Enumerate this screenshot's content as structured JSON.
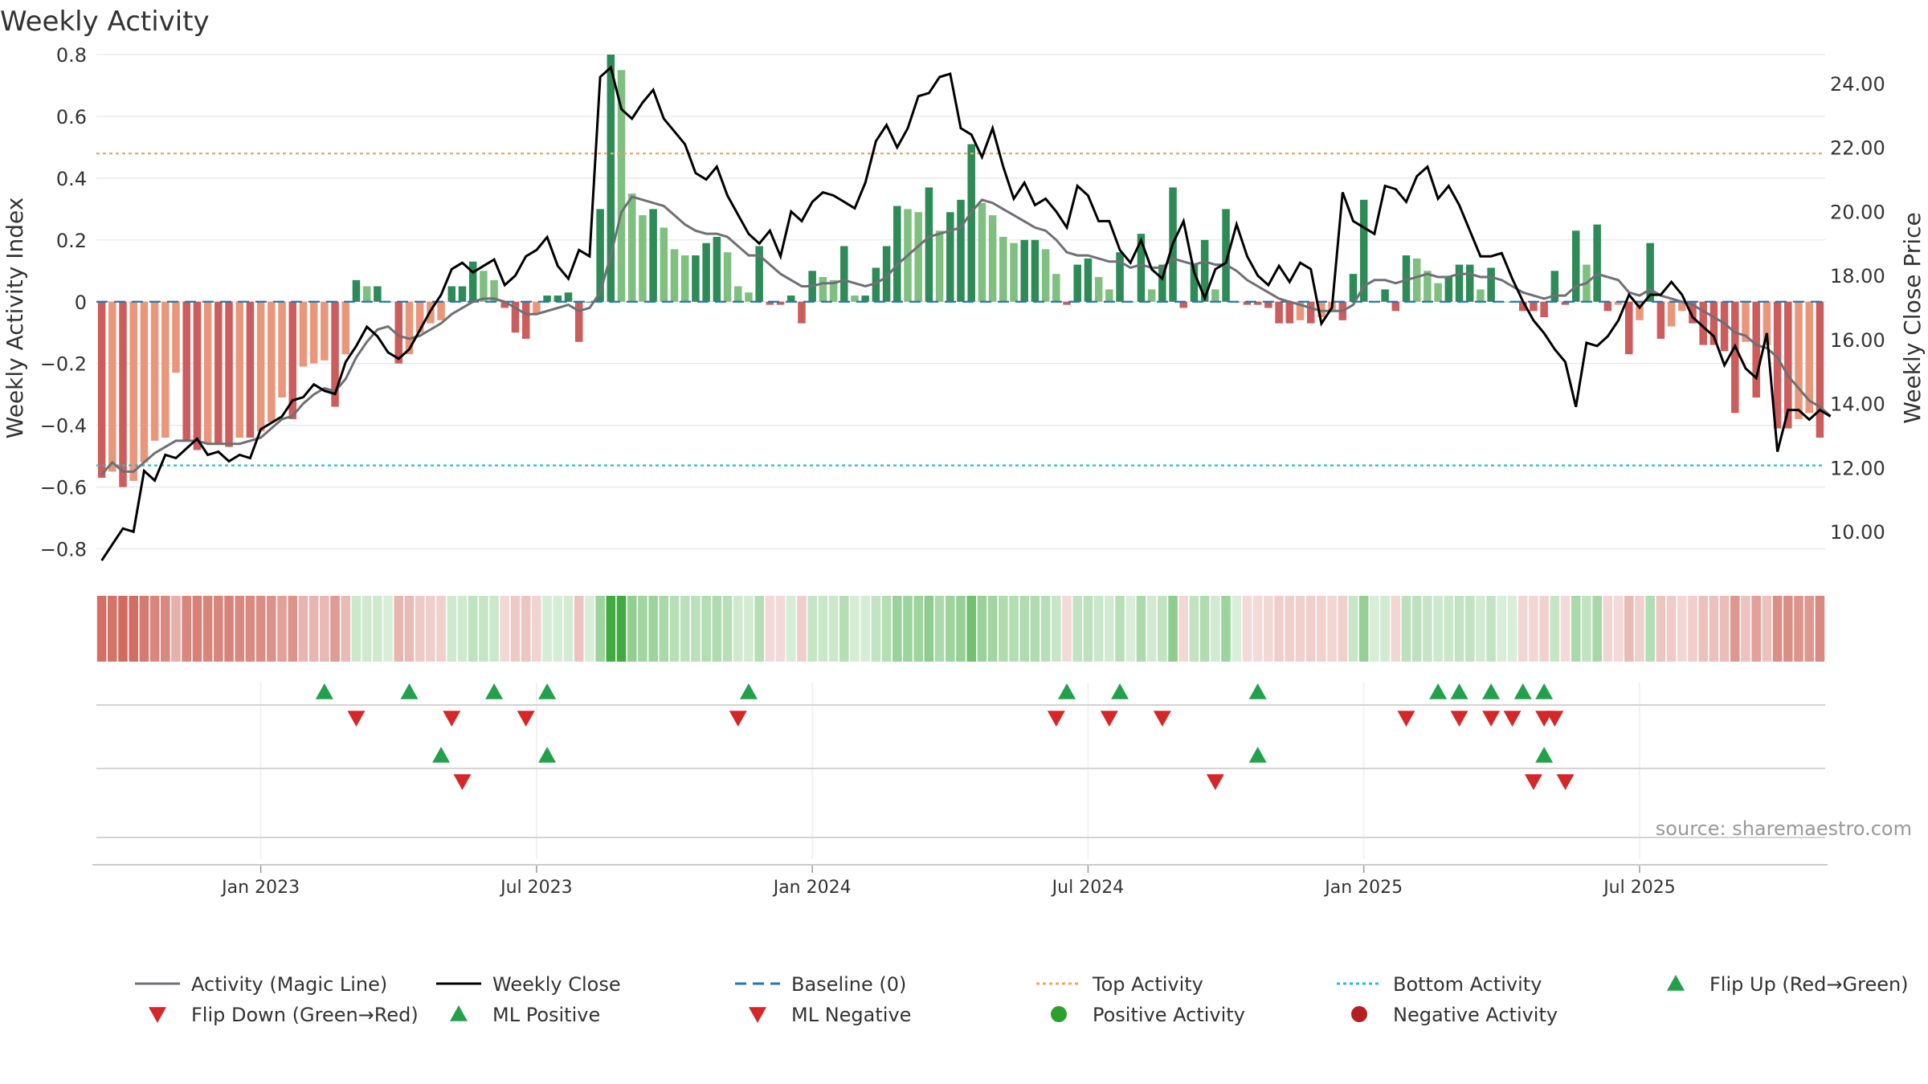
{
  "chart_data": {
    "type": "bar",
    "title": "Weekly Activity",
    "ylabel": "Weekly Activity Index",
    "y2label": "Weekly Close Price",
    "source": "source: sharemaestro.com",
    "ylim": [
      -0.9,
      0.8
    ],
    "y2lim": [
      8.5,
      24.9
    ],
    "yticks": [
      0.8,
      0.6,
      0.4,
      0.2,
      0,
      -0.2,
      -0.4,
      -0.6,
      -0.8
    ],
    "ytick_labels": [
      "0.8",
      "0.6",
      "0.4",
      "0.2",
      "0",
      "−0.2",
      "−0.4",
      "−0.6",
      "−0.8"
    ],
    "y2ticks": [
      24,
      22,
      20,
      18,
      16,
      14,
      12,
      10
    ],
    "y2tick_labels": [
      "24.00",
      "22.00",
      "20.00",
      "18.00",
      "16.00",
      "14.00",
      "12.00",
      "10.00"
    ],
    "x_ticks": [
      {
        "week": 15,
        "label": "Jan 2023"
      },
      {
        "week": 41,
        "label": "Jul 2023"
      },
      {
        "week": 67,
        "label": "Jan 2024"
      },
      {
        "week": 93,
        "label": "Jul 2024"
      },
      {
        "week": 119,
        "label": "Jan 2025"
      },
      {
        "week": 145,
        "label": "Jul 2025"
      }
    ],
    "reference_lines": {
      "baseline": 0,
      "top_activity": 0.48,
      "bottom_activity": -0.53
    },
    "activity_values": [
      -0.57,
      -0.55,
      -0.6,
      -0.58,
      -0.52,
      -0.45,
      -0.44,
      -0.23,
      -0.45,
      -0.48,
      -0.46,
      -0.46,
      -0.47,
      -0.44,
      -0.44,
      -0.42,
      -0.39,
      -0.31,
      -0.38,
      -0.21,
      -0.2,
      -0.19,
      -0.34,
      -0.17,
      0.07,
      0.05,
      0.05,
      0.0,
      -0.2,
      -0.17,
      -0.1,
      -0.07,
      -0.06,
      0.05,
      0.05,
      0.13,
      0.1,
      0.07,
      -0.02,
      -0.1,
      -0.12,
      -0.04,
      0.02,
      0.02,
      0.03,
      -0.13,
      0.0,
      0.3,
      0.8,
      0.75,
      0.35,
      0.28,
      0.3,
      0.24,
      0.17,
      0.15,
      0.15,
      0.19,
      0.21,
      0.16,
      0.05,
      0.03,
      0.18,
      -0.01,
      -0.01,
      0.02,
      -0.07,
      0.1,
      0.08,
      0.07,
      0.18,
      0.02,
      0.02,
      0.11,
      0.18,
      0.31,
      0.3,
      0.29,
      0.37,
      0.23,
      0.29,
      0.33,
      0.51,
      0.32,
      0.28,
      0.21,
      0.19,
      0.2,
      0.2,
      0.17,
      0.09,
      -0.01,
      0.12,
      0.14,
      0.08,
      0.04,
      0.16,
      0.0,
      0.22,
      0.04,
      0.12,
      0.37,
      -0.02,
      0.12,
      0.2,
      0.04,
      0.3,
      0.0,
      -0.01,
      -0.01,
      -0.02,
      -0.07,
      -0.07,
      -0.06,
      -0.07,
      -0.05,
      -0.03,
      -0.06,
      0.09,
      0.33,
      0.0,
      0.04,
      -0.03,
      0.15,
      0.14,
      0.1,
      0.06,
      0.08,
      0.12,
      0.12,
      0.04,
      0.11,
      0.0,
      0.0,
      -0.03,
      -0.03,
      -0.05,
      0.1,
      -0.01,
      0.23,
      0.12,
      0.25,
      -0.03,
      -0.01,
      -0.17,
      -0.06,
      0.19,
      -0.12,
      -0.08,
      -0.03,
      -0.07,
      -0.14,
      -0.14,
      -0.16,
      -0.36,
      -0.13,
      -0.31,
      -0.14,
      -0.41,
      -0.41,
      -0.38,
      -0.36,
      -0.44
    ],
    "magic_line_values": [
      -0.56,
      -0.52,
      -0.55,
      -0.55,
      -0.52,
      -0.49,
      -0.47,
      -0.45,
      -0.45,
      -0.45,
      -0.46,
      -0.46,
      -0.46,
      -0.46,
      -0.45,
      -0.44,
      -0.41,
      -0.38,
      -0.37,
      -0.33,
      -0.3,
      -0.28,
      -0.29,
      -0.25,
      -0.18,
      -0.13,
      -0.09,
      -0.08,
      -0.11,
      -0.12,
      -0.11,
      -0.09,
      -0.07,
      -0.04,
      -0.02,
      0.0,
      0.01,
      0.01,
      0.0,
      -0.02,
      -0.04,
      -0.04,
      -0.03,
      -0.02,
      -0.01,
      -0.03,
      -0.02,
      0.03,
      0.15,
      0.29,
      0.34,
      0.33,
      0.32,
      0.31,
      0.28,
      0.25,
      0.23,
      0.22,
      0.22,
      0.21,
      0.18,
      0.15,
      0.15,
      0.12,
      0.09,
      0.07,
      0.05,
      0.05,
      0.06,
      0.06,
      0.07,
      0.06,
      0.05,
      0.06,
      0.08,
      0.12,
      0.15,
      0.18,
      0.21,
      0.22,
      0.23,
      0.24,
      0.29,
      0.33,
      0.32,
      0.3,
      0.28,
      0.26,
      0.24,
      0.23,
      0.2,
      0.16,
      0.15,
      0.15,
      0.14,
      0.13,
      0.13,
      0.11,
      0.12,
      0.11,
      0.11,
      0.14,
      0.13,
      0.12,
      0.13,
      0.12,
      0.12,
      0.1,
      0.07,
      0.05,
      0.03,
      0.01,
      0.0,
      -0.01,
      -0.02,
      -0.03,
      -0.03,
      -0.03,
      -0.01,
      0.05,
      0.07,
      0.07,
      0.06,
      0.07,
      0.08,
      0.09,
      0.08,
      0.08,
      0.09,
      0.09,
      0.08,
      0.08,
      0.07,
      0.05,
      0.03,
      0.02,
      0.01,
      0.02,
      0.02,
      0.05,
      0.06,
      0.09,
      0.08,
      0.07,
      0.03,
      0.02,
      0.04,
      0.02,
      0.01,
      0.0,
      -0.01,
      -0.03,
      -0.05,
      -0.07,
      -0.1,
      -0.11,
      -0.14,
      -0.15,
      -0.18,
      -0.24,
      -0.28,
      -0.32,
      -0.34,
      -0.37
    ],
    "weekly_close_values": [
      9.1,
      9.6,
      10.1,
      10.0,
      11.9,
      11.6,
      12.4,
      12.3,
      12.6,
      12.9,
      12.4,
      12.5,
      12.2,
      12.4,
      12.3,
      13.2,
      13.4,
      13.6,
      14.1,
      14.2,
      14.6,
      14.4,
      14.3,
      15.3,
      15.8,
      16.4,
      16.1,
      15.6,
      15.4,
      15.7,
      16.3,
      16.9,
      17.4,
      18.2,
      18.4,
      18.1,
      18.3,
      18.5,
      17.7,
      18.0,
      18.6,
      18.8,
      19.2,
      18.3,
      17.9,
      18.8,
      18.6,
      24.2,
      24.5,
      23.2,
      22.9,
      23.4,
      23.8,
      22.9,
      22.5,
      22.1,
      21.2,
      21.0,
      21.4,
      20.5,
      19.9,
      19.3,
      19.0,
      19.4,
      18.6,
      20.0,
      19.7,
      20.3,
      20.6,
      20.5,
      20.3,
      20.1,
      20.9,
      22.2,
      22.7,
      22.0,
      22.6,
      23.6,
      23.7,
      24.2,
      24.3,
      22.6,
      22.4,
      21.7,
      22.6,
      21.4,
      20.4,
      20.9,
      20.2,
      20.4,
      20.0,
      19.5,
      20.8,
      20.5,
      19.7,
      19.7,
      18.8,
      18.4,
      19.1,
      18.2,
      17.9,
      19.0,
      19.7,
      18.1,
      17.3,
      18.2,
      18.4,
      19.6,
      18.6,
      18.0,
      17.7,
      18.3,
      17.8,
      18.4,
      18.2,
      16.5,
      17.0,
      20.6,
      19.7,
      19.5,
      19.3,
      20.8,
      20.7,
      20.3,
      21.1,
      21.4,
      20.4,
      20.8,
      20.2,
      19.4,
      18.6,
      18.6,
      18.7,
      17.9,
      17.2,
      16.6,
      16.2,
      15.7,
      15.3,
      13.9,
      15.9,
      15.8,
      16.1,
      16.6,
      17.4,
      17.0,
      17.4,
      17.4,
      17.8,
      17.4,
      16.7,
      16.4,
      16.1,
      15.2,
      15.8,
      15.1,
      14.8,
      16.2,
      12.5,
      13.8,
      13.8,
      13.5,
      13.8,
      13.6
    ],
    "signals": {
      "flip_up_weeks": [
        21,
        29,
        37,
        42,
        61,
        91,
        96,
        109,
        126,
        128,
        131,
        134,
        136
      ],
      "flip_down_weeks": [
        24,
        33,
        40,
        60,
        90,
        95,
        100,
        123,
        128,
        131,
        133,
        136,
        137
      ],
      "ml_positive_weeks": [
        32,
        42,
        109,
        136
      ],
      "ml_negative_weeks": [
        34,
        105,
        135,
        138
      ]
    },
    "legend": [
      {
        "key": "magic_line",
        "label": "Activity (Magic Line)"
      },
      {
        "key": "weekly_close",
        "label": "Weekly Close"
      },
      {
        "key": "baseline",
        "label": "Baseline (0)"
      },
      {
        "key": "top_activity",
        "label": "Top Activity"
      },
      {
        "key": "bottom_activity",
        "label": "Bottom Activity"
      },
      {
        "key": "flip_up",
        "label": "Flip Up (Red→Green)"
      },
      {
        "key": "flip_down",
        "label": "Flip Down (Green→Red)"
      },
      {
        "key": "ml_positive",
        "label": "ML Positive"
      },
      {
        "key": "ml_negative",
        "label": "ML Negative"
      },
      {
        "key": "positive_activity",
        "label": "Positive Activity"
      },
      {
        "key": "negative_activity",
        "label": "Negative Activity"
      }
    ]
  },
  "colors": {
    "pos_dark": "#2e8b57",
    "pos_light": "#7fbf7f",
    "neg_dark": "#cd5c5c",
    "neg_light": "#e9967a",
    "magic_line": "#6e7075",
    "close_line": "#000000",
    "baseline": "#1f77b4",
    "top": "#f4a460",
    "bottom": "#22c1d4",
    "marker_up": "#22a04a",
    "marker_down": "#d62728",
    "positive_dot": "#2ca02c",
    "negative_dot": "#b22222",
    "text": "#333333",
    "source_text": "#999999"
  }
}
